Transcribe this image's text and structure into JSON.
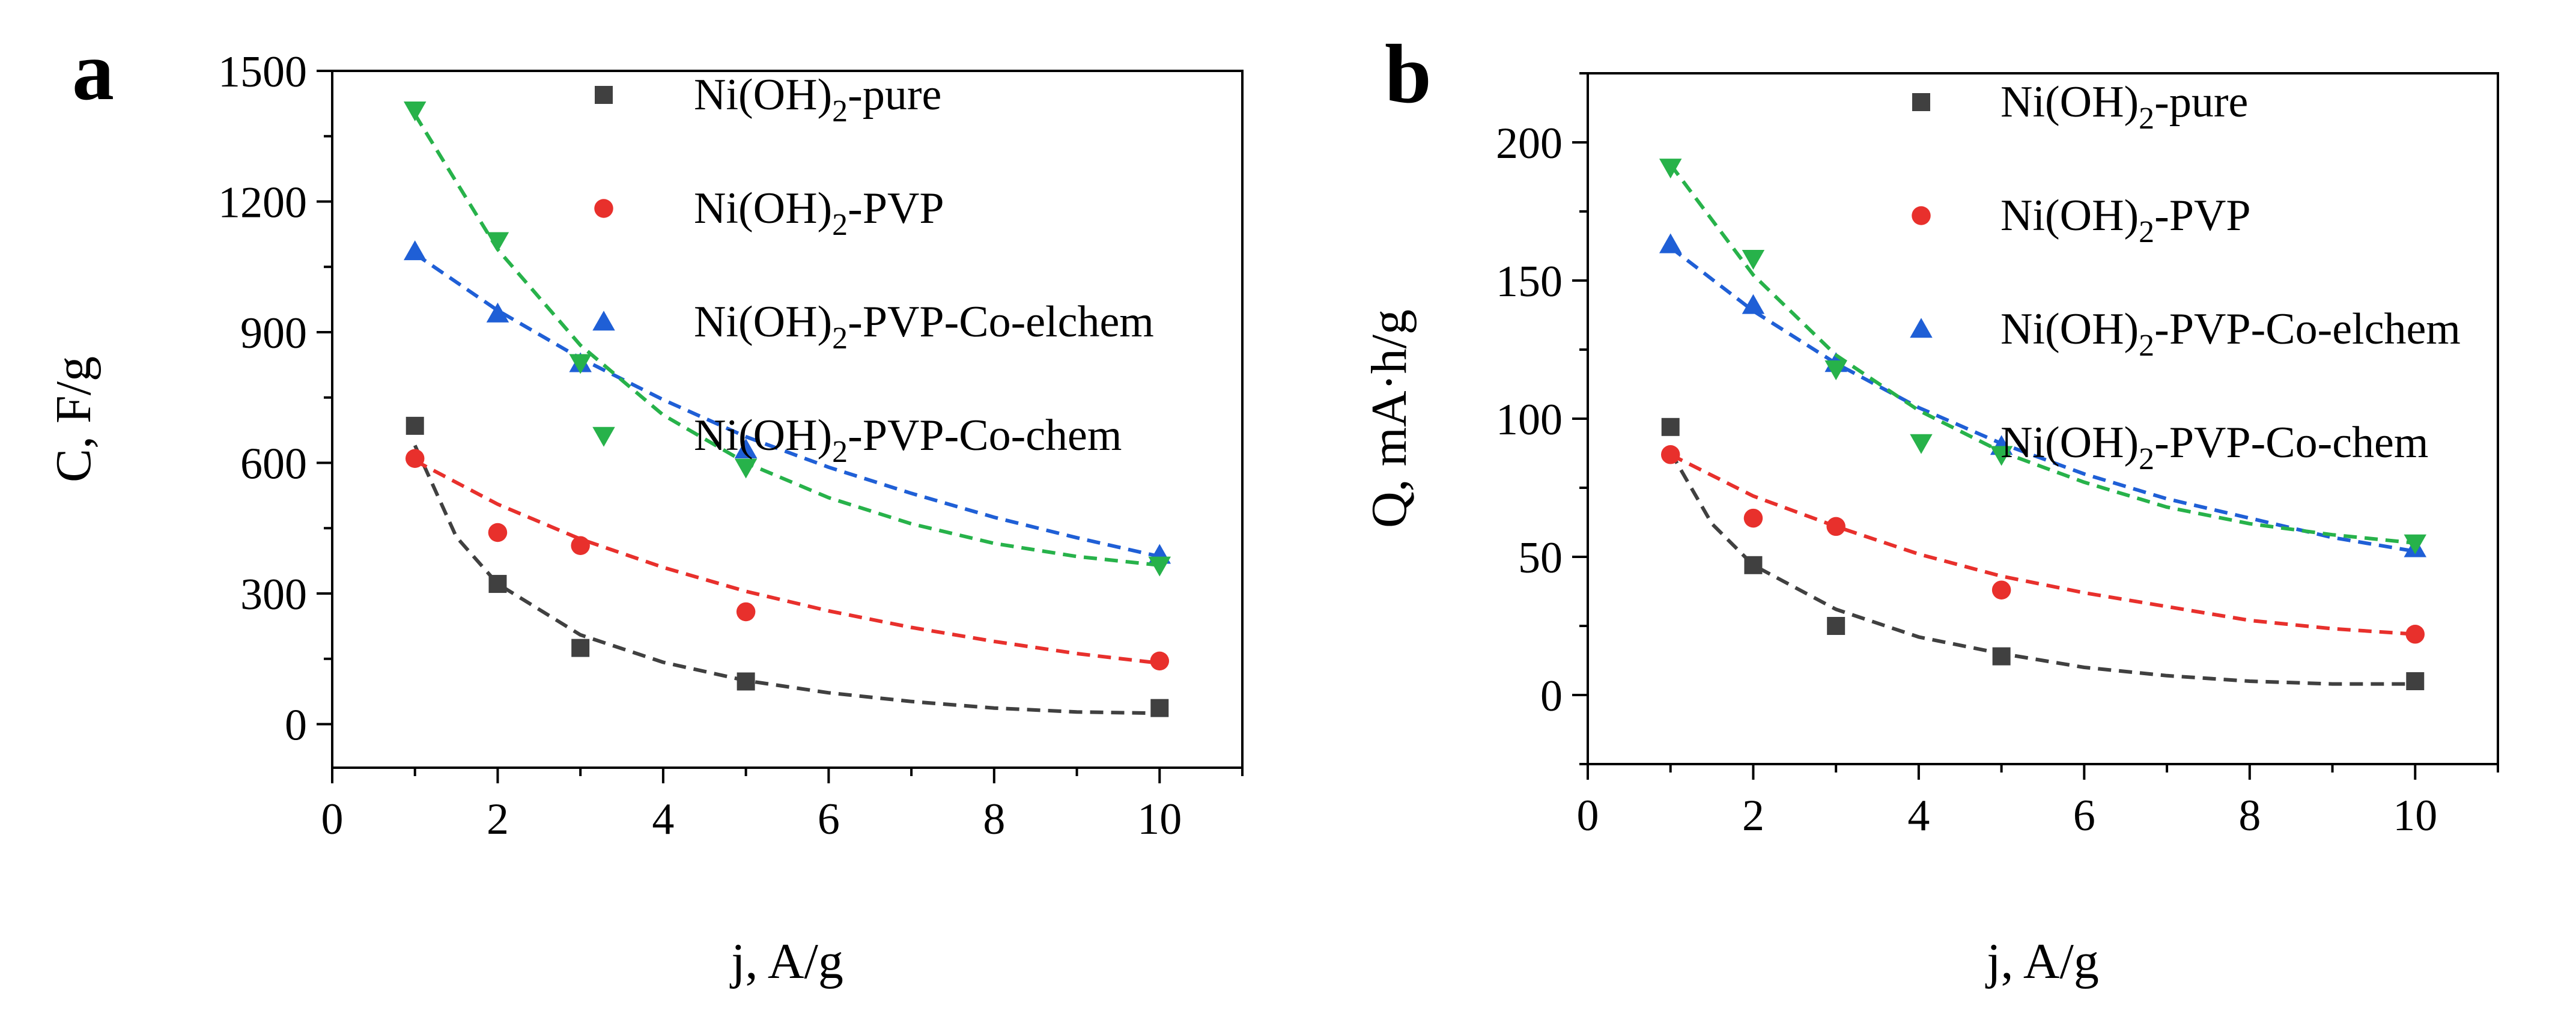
{
  "chart_data": [
    {
      "type": "scatter",
      "panel": "a",
      "xlabel": "j, A/g",
      "ylabel": "C, F/g",
      "xlim": [
        0,
        11
      ],
      "ylim": [
        -100,
        1500
      ],
      "xticks": [
        0,
        2,
        4,
        6,
        8,
        10
      ],
      "yticks": [
        0,
        300,
        600,
        900,
        1200,
        1500
      ],
      "legend_position": "top-right",
      "series": [
        {
          "name": "Ni(OH)2-pure",
          "label_main": "Ni(OH)",
          "label_sub": "2",
          "label_rest": "-pure",
          "marker": "square",
          "color": "#404040",
          "x": [
            1,
            2,
            3,
            5,
            10
          ],
          "values": [
            685,
            322,
            175,
            98,
            37
          ],
          "fit": [
            {
              "x": 1,
              "y": 640
            },
            {
              "x": 1.5,
              "y": 430
            },
            {
              "x": 2,
              "y": 322
            },
            {
              "x": 3,
              "y": 205
            },
            {
              "x": 4,
              "y": 142
            },
            {
              "x": 5,
              "y": 100
            },
            {
              "x": 6,
              "y": 72
            },
            {
              "x": 7,
              "y": 52
            },
            {
              "x": 8,
              "y": 37
            },
            {
              "x": 9,
              "y": 28
            },
            {
              "x": 10,
              "y": 25
            }
          ]
        },
        {
          "name": "Ni(OH)2-PVP",
          "label_main": "Ni(OH)",
          "label_sub": "2",
          "label_rest": "-PVP",
          "marker": "circle",
          "color": "#e8302c",
          "x": [
            1,
            2,
            3,
            5,
            10
          ],
          "values": [
            610,
            440,
            410,
            258,
            145
          ],
          "fit": [
            {
              "x": 1,
              "y": 605
            },
            {
              "x": 2,
              "y": 505
            },
            {
              "x": 3,
              "y": 425
            },
            {
              "x": 4,
              "y": 360
            },
            {
              "x": 5,
              "y": 305
            },
            {
              "x": 6,
              "y": 260
            },
            {
              "x": 7,
              "y": 222
            },
            {
              "x": 8,
              "y": 190
            },
            {
              "x": 9,
              "y": 162
            },
            {
              "x": 10,
              "y": 140
            }
          ]
        },
        {
          "name": "Ni(OH)2-PVP-Co-elchem",
          "label_main": "Ni(OH)",
          "label_sub": "2",
          "label_rest": "-PVP-Co-elchem",
          "marker": "triangle-up",
          "color": "#1f5fd6",
          "x": [
            1,
            2,
            3,
            5,
            10
          ],
          "values": [
            1085,
            942,
            828,
            630,
            388
          ],
          "fit": [
            {
              "x": 1,
              "y": 1080
            },
            {
              "x": 2,
              "y": 950
            },
            {
              "x": 3,
              "y": 840
            },
            {
              "x": 4,
              "y": 745
            },
            {
              "x": 5,
              "y": 660
            },
            {
              "x": 6,
              "y": 590
            },
            {
              "x": 7,
              "y": 530
            },
            {
              "x": 8,
              "y": 475
            },
            {
              "x": 9,
              "y": 428
            },
            {
              "x": 10,
              "y": 385
            }
          ]
        },
        {
          "name": "Ni(OH)2-PVP-Co-chem",
          "label_main": "Ni(OH)",
          "label_sub": "2",
          "label_rest": "-PVP-Co-chem",
          "marker": "triangle-down",
          "color": "#27b24a",
          "x": [
            1,
            2,
            3,
            5,
            10
          ],
          "values": [
            1410,
            1110,
            830,
            590,
            365
          ],
          "fit": [
            {
              "x": 1,
              "y": 1400
            },
            {
              "x": 2,
              "y": 1090
            },
            {
              "x": 3,
              "y": 870
            },
            {
              "x": 4,
              "y": 710
            },
            {
              "x": 5,
              "y": 600
            },
            {
              "x": 6,
              "y": 520
            },
            {
              "x": 7,
              "y": 460
            },
            {
              "x": 8,
              "y": 415
            },
            {
              "x": 9,
              "y": 385
            },
            {
              "x": 10,
              "y": 365
            }
          ]
        }
      ]
    },
    {
      "type": "scatter",
      "panel": "b",
      "xlabel": "j, A/g",
      "ylabel": "Q, mA·h/g",
      "xlim": [
        0,
        11
      ],
      "ylim": [
        -25,
        225
      ],
      "xticks": [
        0,
        2,
        4,
        6,
        8,
        10
      ],
      "yticks": [
        0,
        50,
        100,
        150,
        200
      ],
      "legend_position": "top-right",
      "series": [
        {
          "name": "Ni(OH)2-pure",
          "label_main": "Ni(OH)",
          "label_sub": "2",
          "label_rest": "-pure",
          "marker": "square",
          "color": "#404040",
          "x": [
            1,
            2,
            3,
            5,
            10
          ],
          "values": [
            97,
            47,
            25,
            14,
            5
          ],
          "fit": [
            {
              "x": 1,
              "y": 88
            },
            {
              "x": 1.5,
              "y": 62
            },
            {
              "x": 2,
              "y": 47
            },
            {
              "x": 3,
              "y": 31
            },
            {
              "x": 4,
              "y": 21
            },
            {
              "x": 5,
              "y": 15
            },
            {
              "x": 6,
              "y": 10
            },
            {
              "x": 7,
              "y": 7
            },
            {
              "x": 8,
              "y": 5
            },
            {
              "x": 9,
              "y": 4
            },
            {
              "x": 10,
              "y": 4
            }
          ]
        },
        {
          "name": "Ni(OH)2-PVP",
          "label_main": "Ni(OH)",
          "label_sub": "2",
          "label_rest": "-PVP",
          "marker": "circle",
          "color": "#e8302c",
          "x": [
            1,
            2,
            3,
            5,
            10
          ],
          "values": [
            87,
            64,
            61,
            38,
            22
          ],
          "fit": [
            {
              "x": 1,
              "y": 87
            },
            {
              "x": 2,
              "y": 72
            },
            {
              "x": 3,
              "y": 61
            },
            {
              "x": 4,
              "y": 51
            },
            {
              "x": 5,
              "y": 43
            },
            {
              "x": 6,
              "y": 37
            },
            {
              "x": 7,
              "y": 32
            },
            {
              "x": 8,
              "y": 27
            },
            {
              "x": 9,
              "y": 24
            },
            {
              "x": 10,
              "y": 22
            }
          ]
        },
        {
          "name": "Ni(OH)2-PVP-Co-elchem",
          "label_main": "Ni(OH)",
          "label_sub": "2",
          "label_rest": "-PVP-Co-elchem",
          "marker": "triangle-up",
          "color": "#1f5fd6",
          "x": [
            1,
            2,
            3,
            5,
            10
          ],
          "values": [
            163,
            141,
            120,
            90,
            53
          ],
          "fit": [
            {
              "x": 1,
              "y": 162
            },
            {
              "x": 2,
              "y": 139
            },
            {
              "x": 3,
              "y": 120
            },
            {
              "x": 4,
              "y": 104
            },
            {
              "x": 5,
              "y": 91
            },
            {
              "x": 6,
              "y": 80
            },
            {
              "x": 7,
              "y": 71
            },
            {
              "x": 8,
              "y": 64
            },
            {
              "x": 9,
              "y": 57
            },
            {
              "x": 10,
              "y": 52
            }
          ]
        },
        {
          "name": "Ni(OH)2-PVP-Co-chem",
          "label_main": "Ni(OH)",
          "label_sub": "2",
          "label_rest": "-PVP-Co-chem",
          "marker": "triangle-down",
          "color": "#27b24a",
          "x": [
            1,
            2,
            3,
            5,
            10
          ],
          "values": [
            191,
            158,
            118,
            87,
            55
          ],
          "fit": [
            {
              "x": 1,
              "y": 192
            },
            {
              "x": 2,
              "y": 152
            },
            {
              "x": 3,
              "y": 123
            },
            {
              "x": 4,
              "y": 103
            },
            {
              "x": 5,
              "y": 88
            },
            {
              "x": 6,
              "y": 77
            },
            {
              "x": 7,
              "y": 68
            },
            {
              "x": 8,
              "y": 62
            },
            {
              "x": 9,
              "y": 58
            },
            {
              "x": 10,
              "y": 55
            }
          ]
        }
      ]
    }
  ]
}
